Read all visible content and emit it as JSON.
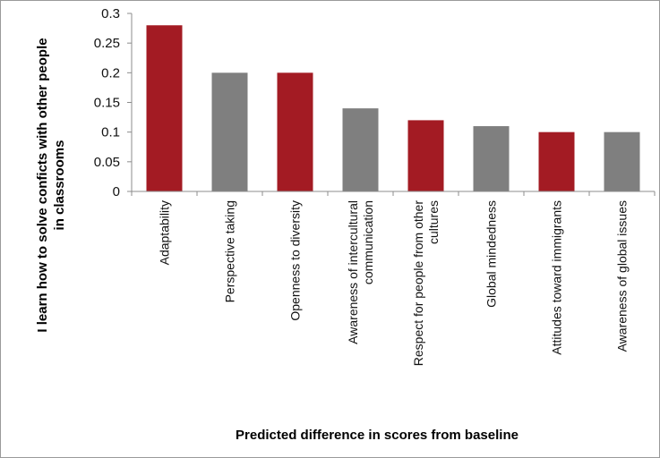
{
  "chart_data": {
    "type": "bar",
    "title": "",
    "xlabel": "Predicted difference  in scores from baseline",
    "ylabel_lines": [
      "I learn  how to solve conficts  with other people",
      "in classrooms"
    ],
    "ylim": [
      0,
      0.3
    ],
    "yticks": [
      "0",
      "0.05",
      "0.1",
      "0.15",
      "0.2",
      "0.25",
      "0.3"
    ],
    "grid": false,
    "categories": [
      [
        "Adaptability"
      ],
      [
        "Perspective taking"
      ],
      [
        "Openness to diversity"
      ],
      [
        "Awareness of intercultural",
        "communication"
      ],
      [
        "Respect for people from other",
        "cultures"
      ],
      [
        "Global mindedness"
      ],
      [
        "Attitudes toward immigrants"
      ],
      [
        "Awareness of global issues"
      ]
    ],
    "values": [
      0.28,
      0.2,
      0.2,
      0.14,
      0.12,
      0.11,
      0.1,
      0.1
    ],
    "bar_colors": [
      "#a31b23",
      "#7f7f7f",
      "#a31b23",
      "#7f7f7f",
      "#a31b23",
      "#7f7f7f",
      "#a31b23",
      "#7f7f7f"
    ],
    "colors": {
      "red": "#a31b23",
      "gray": "#7f7f7f",
      "axis": "#8c8c8c"
    }
  }
}
